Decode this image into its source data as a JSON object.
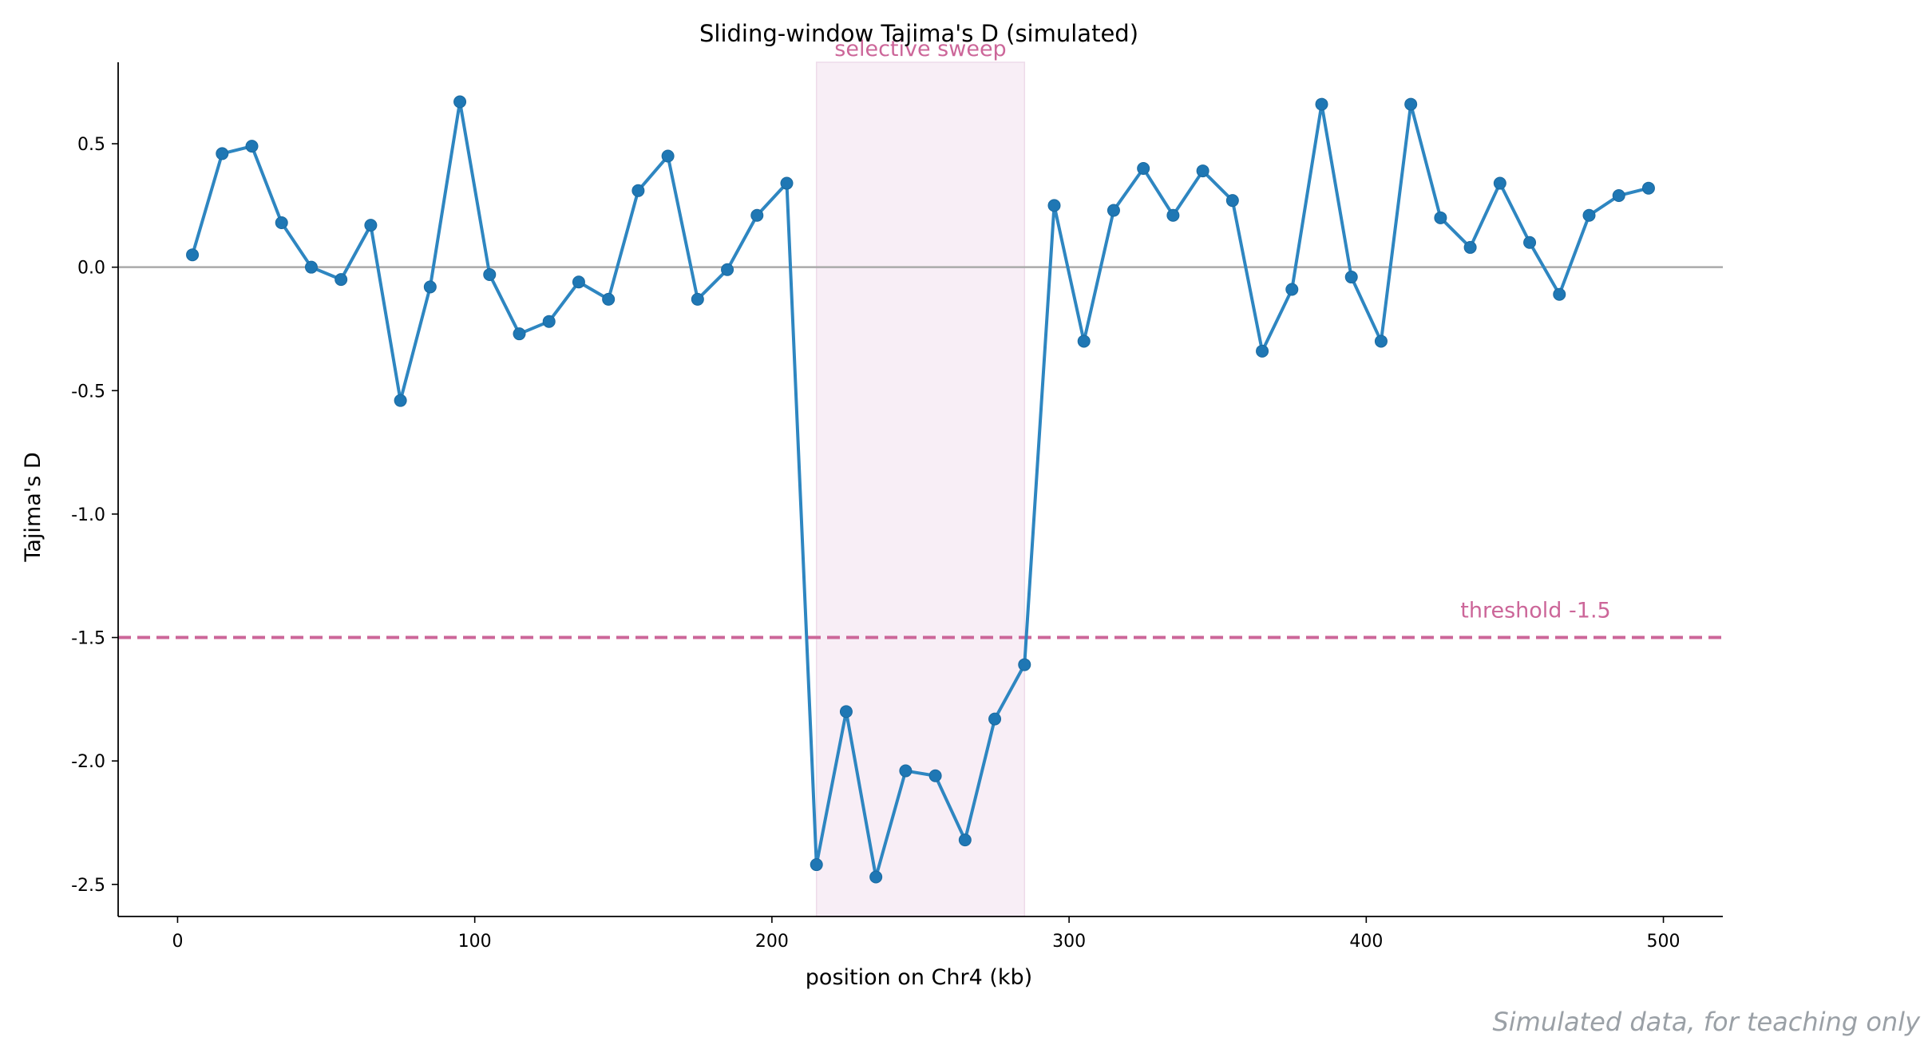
{
  "chart_data": {
    "type": "line",
    "title": "Sliding-window Tajima's D (simulated)",
    "xlabel": "position on Chr4 (kb)",
    "ylabel": "Tajima's D",
    "xlim": [
      -20,
      520
    ],
    "ylim": [
      -2.63,
      0.83
    ],
    "x_ticks": [
      0,
      100,
      200,
      300,
      400,
      500
    ],
    "y_ticks": [
      0.5,
      0.0,
      -0.5,
      -1.0,
      -1.5,
      -2.0,
      -2.5
    ],
    "y_tick_labels": [
      "0.5",
      "0.0",
      "-0.5",
      "-1.0",
      "-1.5",
      "-2.0",
      "-2.5"
    ],
    "grid": false,
    "legend": "none",
    "series": [
      {
        "color": "#2e86c1",
        "x": [
          5,
          15,
          25,
          35,
          45,
          55,
          65,
          75,
          85,
          95,
          105,
          115,
          125,
          135,
          145,
          155,
          165,
          175,
          185,
          195,
          205,
          215,
          225,
          235,
          245,
          255,
          265,
          275,
          285,
          295,
          305,
          315,
          325,
          335,
          345,
          355,
          365,
          375,
          385,
          395,
          405,
          415,
          425,
          435,
          445,
          455,
          465,
          475,
          485,
          495
        ],
        "values": [
          0.05,
          0.46,
          0.49,
          0.18,
          0.0,
          -0.05,
          0.17,
          -0.54,
          -0.08,
          0.67,
          -0.03,
          -0.27,
          -0.22,
          -0.06,
          -0.13,
          0.31,
          0.45,
          -0.13,
          -0.01,
          0.21,
          0.34,
          -2.42,
          -1.8,
          -2.47,
          -2.04,
          -2.06,
          -2.32,
          -1.83,
          -1.61,
          0.25,
          -0.3,
          0.23,
          0.4,
          0.21,
          0.39,
          0.27,
          -0.34,
          -0.09,
          0.66,
          -0.04,
          -0.3,
          0.66,
          0.2,
          0.08,
          0.34,
          0.1,
          -0.11,
          0.21,
          0.29,
          0.32
        ]
      }
    ],
    "zero_line": {
      "y": 0.0,
      "color": "#aaaaaa"
    },
    "threshold": {
      "y": -1.5,
      "label": "threshold -1.5",
      "color": "#cc6699"
    },
    "sweep_region": {
      "x_start": 215,
      "x_end": 285,
      "label": "selective sweep",
      "color": "#f8eef6"
    }
  },
  "footer": {
    "credit": "Simulated data, for teaching only"
  }
}
